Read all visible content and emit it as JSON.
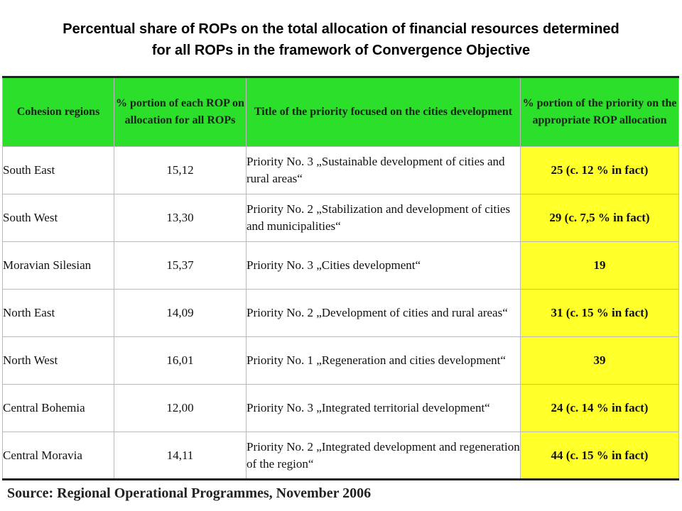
{
  "title": {
    "line1": "Percentual share of ROPs on the total allocation of financial resources determined",
    "line2": "for all ROPs in the framework of Convergence Objective"
  },
  "colors": {
    "header_bg": "#2bdf2b",
    "highlight_bg": "#ffff2a"
  },
  "table": {
    "headers": [
      "Cohesion regions",
      "% portion of each ROP on allocation for all ROPs",
      "Title of the priority focused on the cities development",
      "% portion of the priority on the appropriate ROP allocation"
    ],
    "rows": [
      {
        "region": "South East",
        "portion": "15,12",
        "priority": "Priority No. 3 „Sustainable development of cities and rural areas“",
        "share": "25 (c. 12 % in fact)"
      },
      {
        "region": "South West",
        "portion": "13,30",
        "priority": "Priority No. 2 „Stabilization and development of cities and municipalities“",
        "share": "29 (c. 7,5 % in fact)"
      },
      {
        "region": "Moravian Silesian",
        "portion": "15,37",
        "priority": "Priority No. 3 „Cities development“",
        "share": "19"
      },
      {
        "region": "North East",
        "portion": "14,09",
        "priority": "Priority No. 2 „Development of cities and rural areas“",
        "share": "31 (c. 15 % in fact)"
      },
      {
        "region": "North West",
        "portion": "16,01",
        "priority": "Priority No. 1 „Regeneration and cities development“",
        "share": "39"
      },
      {
        "region": "Central Bohemia",
        "portion": "12,00",
        "priority": "Priority No. 3 „Integrated territorial development“",
        "share": "24 (c. 14 % in fact)"
      },
      {
        "region": "Central Moravia",
        "portion": "14,11",
        "priority": "Priority No. 2 „Integrated development and regeneration of the region“",
        "share": "44 (c. 15 % in fact)"
      }
    ]
  },
  "source": "Source: Regional Operational Programmes, November 2006"
}
